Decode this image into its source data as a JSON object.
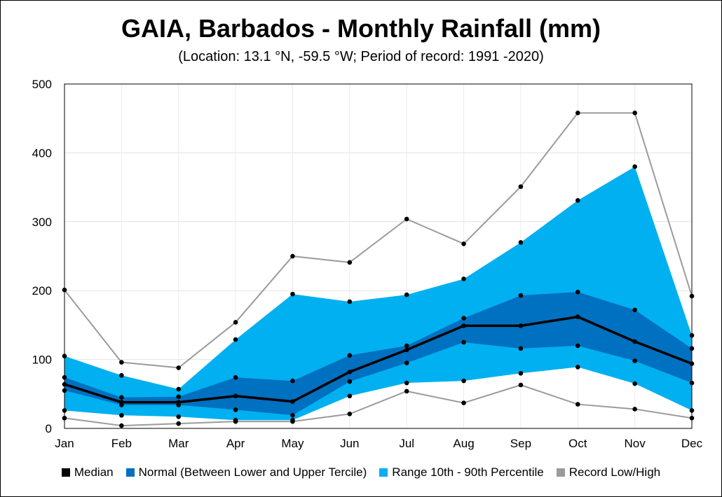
{
  "colors": {
    "median": "#000000",
    "normal": "#0070c0",
    "range": "#00b0f0",
    "record": "#9b9b9b"
  },
  "chart_data": {
    "type": "area",
    "title": "GAIA, Barbados - Monthly Rainfall (mm)",
    "subtitle": "(Location: 13.1 °N, -59.5 °W; Period of record: 1991 -2020)",
    "xlabel": "",
    "ylabel": "",
    "ylim": [
      0,
      500
    ],
    "yticks": [
      0,
      100,
      200,
      300,
      400,
      500
    ],
    "grid": true,
    "legend_position": "bottom",
    "categories": [
      "Jan",
      "Feb",
      "Mar",
      "Apr",
      "May",
      "Jun",
      "Jul",
      "Aug",
      "Sep",
      "Oct",
      "Nov",
      "Dec"
    ],
    "series": [
      {
        "name": "Median",
        "key": "median",
        "values": [
          64,
          38,
          38,
          47,
          39,
          82,
          114,
          149,
          149,
          162,
          126,
          94
        ]
      },
      {
        "name": "Normal (Between Lower and Upper Tercile)",
        "key": "normal",
        "lower": [
          55,
          34,
          34,
          27,
          19,
          68,
          95,
          125,
          116,
          120,
          98,
          66
        ],
        "upper": [
          74,
          45,
          46,
          74,
          69,
          106,
          120,
          160,
          193,
          198,
          172,
          116
        ]
      },
      {
        "name": "Range 10th - 90th Percentile",
        "key": "range",
        "lower": [
          26,
          19,
          17,
          12,
          12,
          47,
          66,
          69,
          80,
          89,
          65,
          26
        ],
        "upper": [
          105,
          77,
          57,
          129,
          195,
          184,
          194,
          217,
          270,
          331,
          380,
          135
        ]
      },
      {
        "name": "Record Low/High",
        "key": "record",
        "lower": [
          15,
          4,
          7,
          10,
          10,
          21,
          54,
          37,
          63,
          35,
          28,
          15
        ],
        "upper": [
          201,
          96,
          88,
          154,
          250,
          241,
          304,
          268,
          351,
          458,
          458,
          192
        ]
      }
    ]
  }
}
